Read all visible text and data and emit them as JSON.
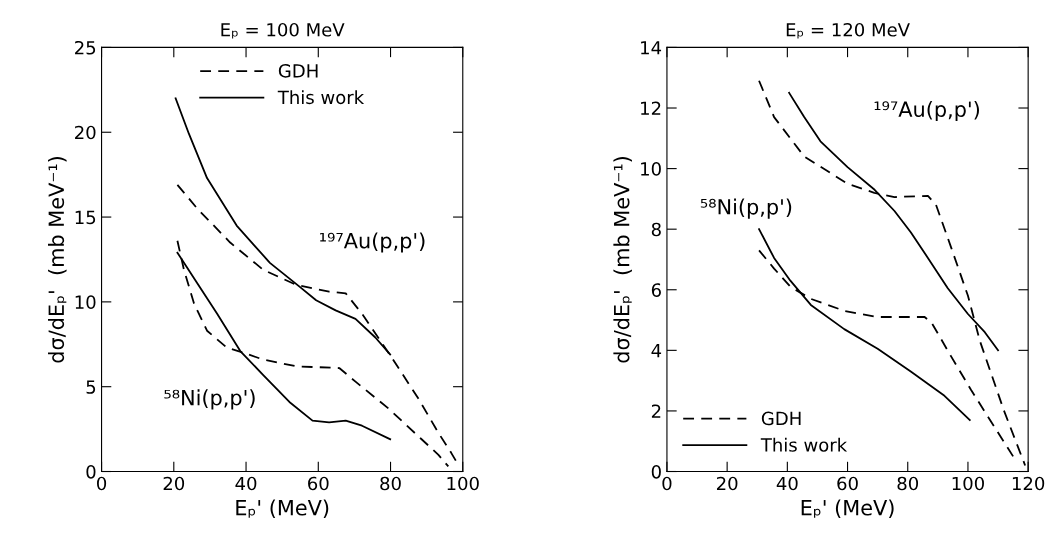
{
  "chart_data": [
    {
      "type": "line",
      "title": "Eₚ = 100 MeV",
      "xlabel": "Eₚ' (MeV)",
      "ylabel": "dσ/dEₚ'  (mb MeV⁻¹)",
      "xlim": [
        0,
        100
      ],
      "ylim": [
        0,
        25
      ],
      "xticks": [
        0,
        20,
        40,
        60,
        80,
        100
      ],
      "yticks": [
        0,
        5,
        10,
        15,
        20,
        25
      ],
      "grid": false,
      "legend": "top",
      "annotations": [
        "¹⁹⁷Au(p,p')",
        "⁵⁸Ni(p,p')"
      ],
      "series": [
        {
          "name": "GDH",
          "color": "#000000",
          "line_style": "dashed",
          "x": [
            21,
            26.5,
            35.6,
            44.7,
            53.9,
            63,
            67.6,
            72.1,
            80.4,
            87.7,
            93.2,
            96.8,
            99
          ],
          "values": [
            16.9,
            15.5,
            13.5,
            11.9,
            11.0,
            10.6,
            10.5,
            9.3,
            6.7,
            4.3,
            2.3,
            1.1,
            0.3
          ]
        },
        {
          "name": "This work",
          "color": "#000000",
          "line_style": "solid",
          "x": [
            20.5,
            24.2,
            29.2,
            37.4,
            46.6,
            54.8,
            59.4,
            64.8,
            70.3,
            75.8,
            79.9
          ],
          "values": [
            22,
            19.9,
            17.3,
            14.5,
            12.3,
            10.9,
            10.1,
            9.5,
            9.0,
            7.9,
            6.9
          ]
        },
        {
          "name": "GDH",
          "color": "#000000",
          "line_style": "dashed",
          "x": [
            21,
            22.8,
            25.6,
            29.2,
            34.7,
            39.3,
            44.7,
            53.9,
            65.8,
            70.3,
            79.5,
            88.6,
            93.2,
            96
          ],
          "values": [
            13.6,
            11.9,
            9.9,
            8.3,
            7.3,
            7.0,
            6.6,
            6.2,
            6.1,
            5.3,
            3.7,
            1.9,
            1.0,
            0.3
          ]
        },
        {
          "name": "This work",
          "color": "#000000",
          "line_style": "solid",
          "x": [
            21,
            26.5,
            32,
            38.4,
            44.7,
            52,
            58.4,
            63,
            67.6,
            72.1,
            79.9
          ],
          "values": [
            12.9,
            11.1,
            9.3,
            7.1,
            5.7,
            4.1,
            3.0,
            2.9,
            3.0,
            2.7,
            1.9
          ]
        }
      ]
    },
    {
      "type": "line",
      "title": "Eₚ = 120 MeV",
      "xlabel": "Eₚ' (MeV)",
      "ylabel": "dσ/dEₚ'  (mb MeV⁻¹)",
      "xlim": [
        0,
        120
      ],
      "ylim": [
        0,
        14
      ],
      "xticks": [
        0,
        20,
        40,
        60,
        80,
        100,
        120
      ],
      "yticks": [
        0,
        2,
        4,
        6,
        8,
        10,
        12,
        14
      ],
      "grid": false,
      "legend": "bottom left",
      "annotations": [
        "¹⁹⁷Au(p,p')",
        "⁵⁸Ni(p,p')"
      ],
      "series": [
        {
          "name": "GDH",
          "color": "#000000",
          "line_style": "dashed",
          "x": [
            30.6,
            35.6,
            45.6,
            60,
            68.9,
            75.6,
            86.7,
            89.4,
            94.4,
            100,
            104,
            112,
            119
          ],
          "values": [
            12.9,
            11.7,
            10.4,
            9.5,
            9.2,
            9.06,
            9.1,
            8.8,
            7.4,
            5.8,
            4.3,
            2.0,
            0.2
          ]
        },
        {
          "name": "This work",
          "color": "#000000",
          "line_style": "solid",
          "x": [
            40.6,
            45.6,
            51,
            60,
            69,
            75.6,
            81,
            86.7,
            93.3,
            100,
            105.6,
            110
          ],
          "values": [
            12.5,
            11.7,
            10.9,
            10.05,
            9.3,
            8.6,
            7.9,
            7.05,
            6.05,
            5.2,
            4.6,
            4.0
          ]
        },
        {
          "name": "GDH",
          "color": "#000000",
          "line_style": "dashed",
          "x": [
            30.6,
            35.6,
            41,
            47.8,
            59,
            70,
            85.6,
            88,
            94.4,
            101,
            106.7,
            115
          ],
          "values": [
            7.3,
            6.7,
            6.1,
            5.7,
            5.3,
            5.1,
            5.1,
            4.9,
            3.8,
            2.7,
            1.8,
            0.5
          ]
        },
        {
          "name": "This work",
          "color": "#000000",
          "line_style": "solid",
          "x": [
            30.6,
            35.6,
            41,
            47.8,
            58.9,
            70,
            81,
            92.2,
            100.6
          ],
          "values": [
            8.0,
            7.05,
            6.3,
            5.5,
            4.7,
            4.05,
            3.3,
            2.5,
            1.7
          ]
        }
      ]
    }
  ]
}
